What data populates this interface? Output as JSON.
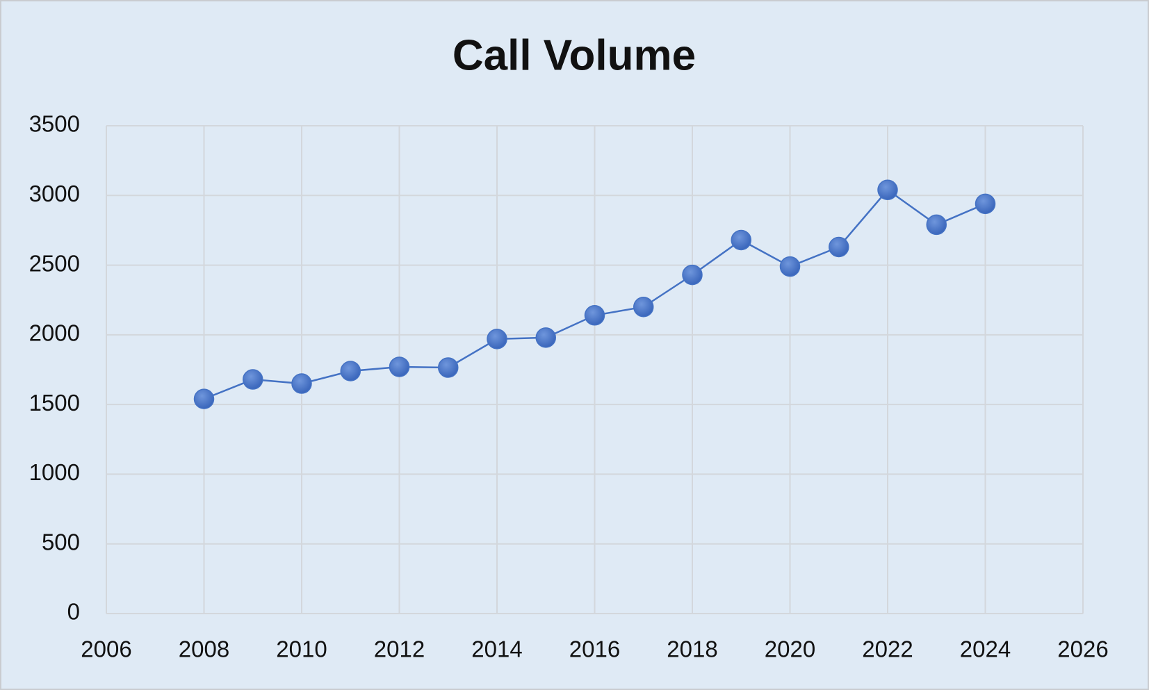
{
  "chart_data": {
    "type": "line",
    "title": "Call Volume",
    "x": [
      2008,
      2009,
      2010,
      2011,
      2012,
      2013,
      2014,
      2015,
      2016,
      2017,
      2018,
      2019,
      2020,
      2021,
      2022,
      2023,
      2024
    ],
    "values": [
      1540,
      1680,
      1650,
      1740,
      1770,
      1765,
      1970,
      1980,
      2140,
      2200,
      2430,
      2680,
      2490,
      2630,
      3040,
      2790,
      2940
    ],
    "color": "#4472c4",
    "xlim": [
      2006,
      2026
    ],
    "xticks": [
      2006,
      2008,
      2010,
      2012,
      2014,
      2016,
      2018,
      2020,
      2022,
      2024,
      2026
    ],
    "ylim": [
      0,
      3500
    ],
    "yticks": [
      0,
      500,
      1000,
      1500,
      2000,
      2500,
      3000,
      3500
    ],
    "grid": true
  }
}
